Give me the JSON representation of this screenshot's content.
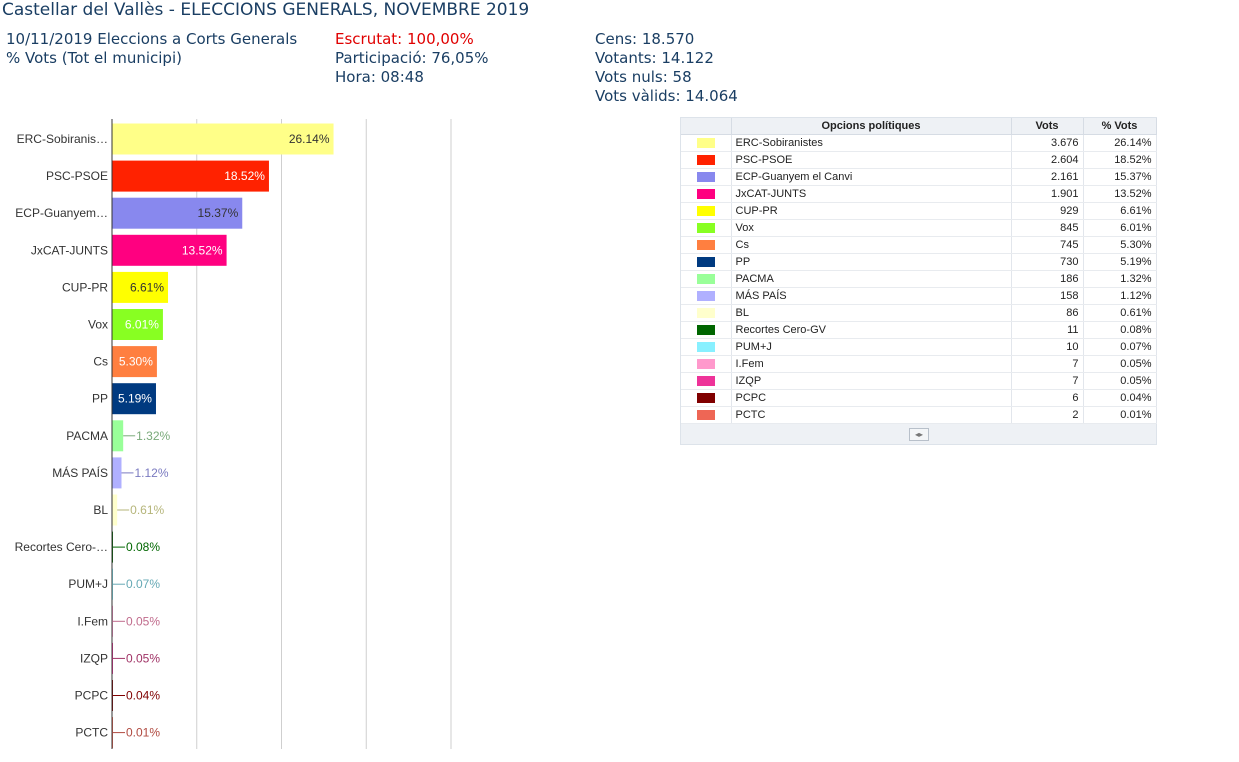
{
  "header": {
    "title": "Castellar del Vallès - ELECCIONS GENERALS, NOVEMBRE 2019",
    "election": "10/11/2019 Eleccions a Corts Generals",
    "scope": "% Vots (Tot el municipi)",
    "escrutat": "Escrutat: 100,00%",
    "participacio": "Participació: 76,05%",
    "hora": "Hora: 08:48",
    "cens": "Cens: 18.570",
    "votants": "Votants: 14.122",
    "vots_nuls": "Vots nuls: 58",
    "vots_valids": "Vots vàlids: 14.064"
  },
  "colors": {
    "header_text": "#1a3e63",
    "escrutat": "#e00000"
  },
  "chart_data": {
    "type": "bar",
    "orientation": "horizontal",
    "categories": [
      "ERC-Sobiranis…",
      "PSC-PSOE",
      "ECP-Guanyem…",
      "JxCAT-JUNTS",
      "CUP-PR",
      "Vox",
      "Cs",
      "PP",
      "PACMA",
      "MÁS PAÍS",
      "BL",
      "Recortes Cero-…",
      "PUM+J",
      "I.Fem",
      "IZQP",
      "PCPC",
      "PCTC"
    ],
    "values": [
      26.14,
      18.52,
      15.37,
      13.52,
      6.61,
      6.01,
      5.3,
      5.19,
      1.32,
      1.12,
      0.61,
      0.08,
      0.07,
      0.05,
      0.05,
      0.04,
      0.01
    ],
    "labels": [
      "26.14%",
      "18.52%",
      "15.37%",
      "13.52%",
      "6.61%",
      "6.01%",
      "5.30%",
      "5.19%",
      "1.32%",
      "1.12%",
      "0.61%",
      "0.08%",
      "0.07%",
      "0.05%",
      "0.05%",
      "0.04%",
      "0.01%"
    ],
    "colors": [
      "#ffff88",
      "#ff2200",
      "#8888ee",
      "#ff0080",
      "#ffff00",
      "#88ff22",
      "#ff7f40",
      "#003a80",
      "#99ff99",
      "#b0b0ff",
      "#ffffcc",
      "#006600",
      "#88f0ff",
      "#ff99cc",
      "#ee3399",
      "#800000",
      "#ee6655"
    ],
    "label_colors": [
      "#333333",
      "#ffffff",
      "#333333",
      "#ffffff",
      "#333333",
      "#ffffff",
      "#ffffff",
      "#ffffff",
      "#7aaa7a",
      "#7a7ac0",
      "#b5b57a",
      "#006600",
      "#66a9b5",
      "#c06b8c",
      "#a03366",
      "#800000",
      "#b04a40"
    ],
    "xlim": [
      0,
      40
    ],
    "grid": true,
    "legend": "none"
  },
  "table": {
    "headers": [
      "",
      "Opcions polítiques",
      "Vots",
      "% Vots"
    ],
    "rows": [
      {
        "name": "ERC-Sobiranistes",
        "votes": "3.676",
        "pct": "26.14%",
        "color": "#ffff88"
      },
      {
        "name": "PSC-PSOE",
        "votes": "2.604",
        "pct": "18.52%",
        "color": "#ff2200"
      },
      {
        "name": "ECP-Guanyem el Canvi",
        "votes": "2.161",
        "pct": "15.37%",
        "color": "#8888ee"
      },
      {
        "name": "JxCAT-JUNTS",
        "votes": "1.901",
        "pct": "13.52%",
        "color": "#ff0080"
      },
      {
        "name": "CUP-PR",
        "votes": "929",
        "pct": "6.61%",
        "color": "#ffff00"
      },
      {
        "name": "Vox",
        "votes": "845",
        "pct": "6.01%",
        "color": "#88ff22"
      },
      {
        "name": "Cs",
        "votes": "745",
        "pct": "5.30%",
        "color": "#ff7f40"
      },
      {
        "name": "PP",
        "votes": "730",
        "pct": "5.19%",
        "color": "#003a80"
      },
      {
        "name": "PACMA",
        "votes": "186",
        "pct": "1.32%",
        "color": "#99ff99"
      },
      {
        "name": "MÁS PAÍS",
        "votes": "158",
        "pct": "1.12%",
        "color": "#b0b0ff"
      },
      {
        "name": "BL",
        "votes": "86",
        "pct": "0.61%",
        "color": "#ffffcc"
      },
      {
        "name": "Recortes Cero-GV",
        "votes": "11",
        "pct": "0.08%",
        "color": "#006600"
      },
      {
        "name": "PUM+J",
        "votes": "10",
        "pct": "0.07%",
        "color": "#88f0ff"
      },
      {
        "name": "I.Fem",
        "votes": "7",
        "pct": "0.05%",
        "color": "#ff99cc"
      },
      {
        "name": "IZQP",
        "votes": "7",
        "pct": "0.05%",
        "color": "#ee3399"
      },
      {
        "name": "PCPC",
        "votes": "6",
        "pct": "0.04%",
        "color": "#800000"
      },
      {
        "name": "PCTC",
        "votes": "2",
        "pct": "0.01%",
        "color": "#ee6655"
      }
    ]
  }
}
